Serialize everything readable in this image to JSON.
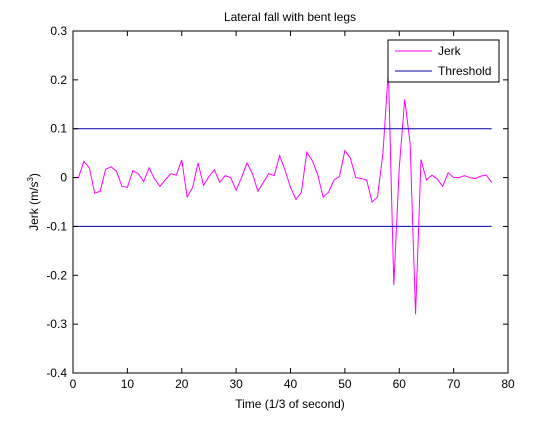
{
  "chart_data": {
    "type": "line",
    "title": "Lateral fall with bent legs",
    "xlabel": "Time (1/3 of second)",
    "ylabel_main": "Jerk (m/s",
    "ylabel_sup": "3",
    "ylabel_tail": ")",
    "xlim": [
      0,
      80
    ],
    "ylim": [
      -0.4,
      0.3
    ],
    "xticks": [
      0,
      10,
      20,
      30,
      40,
      50,
      60,
      70,
      80
    ],
    "yticks": [
      -0.4,
      -0.3,
      -0.2,
      -0.1,
      0,
      0.1,
      0.2,
      0.3
    ],
    "xtick_labels": [
      "0",
      "10",
      "20",
      "30",
      "40",
      "50",
      "60",
      "70",
      "80"
    ],
    "ytick_labels": [
      "-0.4",
      "-0.3",
      "-0.2",
      "-0.1",
      "0",
      "0.1",
      "0.2",
      "0.3"
    ],
    "grid": false,
    "legend_position": "top-right",
    "series": [
      {
        "name": "Jerk",
        "color": "#ff00ff",
        "x": [
          0,
          1,
          2,
          3,
          4,
          5,
          6,
          7,
          8,
          9,
          10,
          11,
          12,
          13,
          14,
          15,
          16,
          17,
          18,
          19,
          20,
          21,
          22,
          23,
          24,
          25,
          26,
          27,
          28,
          29,
          30,
          31,
          32,
          33,
          34,
          35,
          36,
          37,
          38,
          39,
          40,
          41,
          42,
          43,
          44,
          45,
          46,
          47,
          48,
          49,
          50,
          51,
          52,
          53,
          54,
          55,
          56,
          57,
          58,
          59,
          60,
          61,
          62,
          63,
          64,
          65,
          66,
          67,
          68,
          69,
          70,
          71,
          72,
          73,
          74,
          75,
          76,
          77
        ],
        "y": [
          0,
          0,
          0.033,
          0.02,
          -0.032,
          -0.028,
          0.017,
          0.022,
          0.013,
          -0.018,
          -0.02,
          0.014,
          0.008,
          -0.008,
          0.02,
          -0.003,
          -0.018,
          -0.004,
          0.008,
          0.005,
          0.036,
          -0.04,
          -0.02,
          0.03,
          -0.016,
          0.002,
          0.016,
          -0.01,
          0.004,
          0,
          -0.026,
          0,
          0.03,
          0.008,
          -0.028,
          -0.01,
          0.008,
          0.004,
          0.045,
          0.015,
          -0.02,
          -0.045,
          -0.03,
          0.052,
          0.035,
          0.006,
          -0.04,
          -0.03,
          -0.005,
          0.002,
          0.055,
          0.04,
          0,
          -0.002,
          -0.005,
          -0.05,
          -0.04,
          0.05,
          0.22,
          -0.22,
          0.02,
          0.16,
          0.07,
          -0.28,
          0.037,
          -0.005,
          0.005,
          -0.003,
          -0.018,
          0.01,
          0,
          0,
          0.004,
          0,
          -0.002,
          0.003,
          0.005,
          -0.01
        ]
      },
      {
        "name": "Threshold",
        "color": "#0000aa",
        "x": [
          0,
          77
        ],
        "y": [
          0.1,
          0.1
        ]
      },
      {
        "name": "",
        "color": "#0000aa",
        "x": [
          0,
          77
        ],
        "y": [
          -0.1,
          -0.1
        ]
      }
    ]
  }
}
